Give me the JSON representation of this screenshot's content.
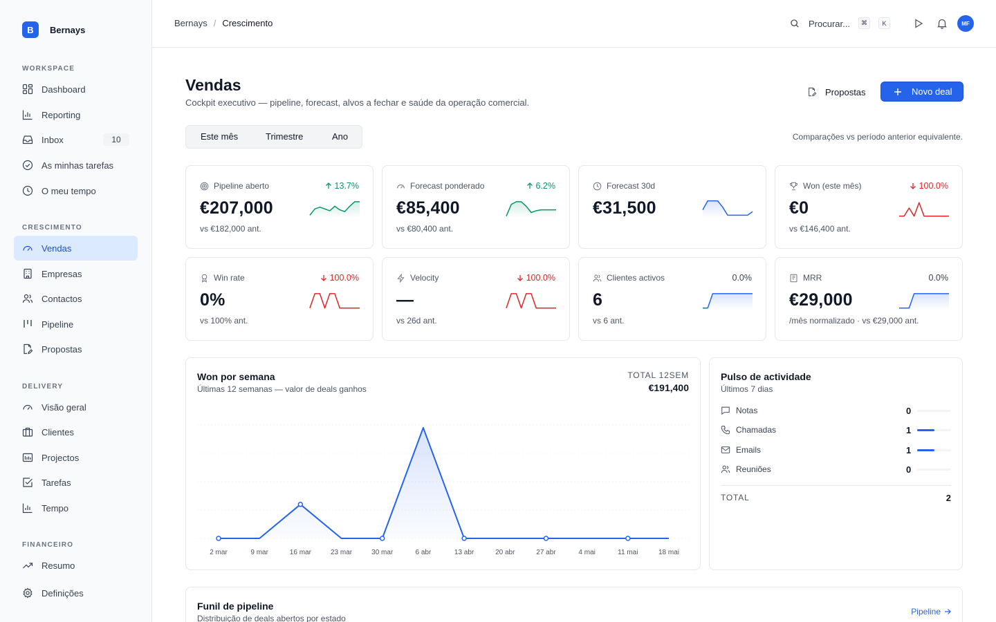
{
  "brand": {
    "initial": "B",
    "name": "Bernays"
  },
  "sidebar": {
    "sections": [
      {
        "label": "WORKSPACE"
      },
      {
        "label": "CRESCIMENTO"
      },
      {
        "label": "DELIVERY"
      },
      {
        "label": "FINANCEIRO"
      }
    ],
    "items": [
      {
        "label": "Dashboard",
        "icon": "dashboard-icon"
      },
      {
        "label": "Reporting",
        "icon": "bar-chart-icon"
      },
      {
        "label": "Inbox",
        "icon": "inbox-icon",
        "badge": "10"
      },
      {
        "label": "As minhas tarefas",
        "icon": "check-circle-icon"
      },
      {
        "label": "O meu tempo",
        "icon": "clock-icon"
      },
      {
        "label": "Vendas",
        "icon": "gauge-icon",
        "active": true
      },
      {
        "label": "Empresas",
        "icon": "building-icon"
      },
      {
        "label": "Contactos",
        "icon": "users-icon"
      },
      {
        "label": "Pipeline",
        "icon": "pipeline-icon"
      },
      {
        "label": "Propostas",
        "icon": "document-edit-icon"
      },
      {
        "label": "Visão geral",
        "icon": "gauge-icon"
      },
      {
        "label": "Clientes",
        "icon": "briefcase-icon"
      },
      {
        "label": "Projectos",
        "icon": "folder-icon"
      },
      {
        "label": "Tarefas",
        "icon": "checkbox-icon"
      },
      {
        "label": "Tempo",
        "icon": "bar-chart-icon"
      },
      {
        "label": "Resumo",
        "icon": "trend-icon"
      },
      {
        "label": "Definições",
        "icon": "gear-icon"
      }
    ]
  },
  "header": {
    "breadcrumb": [
      "Bernays",
      "Crescimento"
    ],
    "search_placeholder": "Procurar...",
    "shortcut_keys": [
      "⌘",
      "K"
    ],
    "avatar_initials": "MF"
  },
  "page": {
    "title": "Vendas",
    "subtitle": "Cockpit executivo — pipeline, forecast, alvos a fechar e saúde da operação comercial.",
    "secondary_button": "Propostas",
    "primary_button": "Novo deal",
    "periods": [
      "Este mês",
      "Trimestre",
      "Ano"
    ],
    "compare_note": "Comparações vs período anterior equivalente."
  },
  "colors": {
    "accent": "#2563eb",
    "up": "#059669",
    "down": "#dc2626"
  },
  "kpis": [
    {
      "label": "Pipeline aberto",
      "icon": "target-icon",
      "delta": "13.7%",
      "trend": "up",
      "value": "€207,000",
      "sub": "vs €182,000 ant.",
      "spark": [
        0.1,
        0.45,
        0.55,
        0.45,
        0.35,
        0.6,
        0.4,
        0.3,
        0.6,
        0.85,
        0.85
      ]
    },
    {
      "label": "Forecast ponderado",
      "icon": "gauge-icon",
      "delta": "6.2%",
      "trend": "up",
      "value": "€85,400",
      "sub": "vs €80,400 ant.",
      "spark": [
        0.05,
        0.7,
        0.85,
        0.85,
        0.6,
        0.25,
        0.35,
        0.4,
        0.4,
        0.4,
        0.4
      ]
    },
    {
      "label": "Forecast 30d",
      "icon": "clock-icon",
      "delta": "",
      "trend": "none",
      "value": "€31,500",
      "sub": "",
      "spark": [
        0.4,
        0.9,
        0.9,
        0.9,
        0.55,
        0.1,
        0.1,
        0.1,
        0.1,
        0.1,
        0.3
      ]
    },
    {
      "label": "Won (este mês)",
      "icon": "trophy-icon",
      "delta": "100.0%",
      "trend": "down",
      "value": "€0",
      "sub": "vs €146,400 ant.",
      "spark": [
        0.05,
        0.05,
        0.5,
        0.05,
        0.8,
        0.05,
        0.05,
        0.05,
        0.05,
        0.05,
        0.05
      ]
    },
    {
      "label": "Win rate",
      "icon": "medal-icon",
      "delta": "100.0%",
      "trend": "down",
      "value": "0%",
      "sub": "vs 100% ant.",
      "spark": [
        0.05,
        0.85,
        0.85,
        0.05,
        0.85,
        0.85,
        0.05,
        0.05,
        0.05,
        0.05,
        0.05
      ]
    },
    {
      "label": "Velocity",
      "icon": "lightning-icon",
      "delta": "100.0%",
      "trend": "down",
      "value": "—",
      "sub": "vs 26d ant.",
      "spark": [
        0.05,
        0.85,
        0.85,
        0.05,
        0.85,
        0.85,
        0.05,
        0.05,
        0.05,
        0.05,
        0.05
      ]
    },
    {
      "label": "Clientes activos",
      "icon": "users-icon",
      "delta": "0.0%",
      "trend": "flat",
      "value": "6",
      "sub": "vs 6 ant.",
      "spark": [
        0.05,
        0.05,
        0.85,
        0.85,
        0.85,
        0.85,
        0.85,
        0.85,
        0.85,
        0.85,
        0.85
      ]
    },
    {
      "label": "MRR",
      "icon": "receipt-icon",
      "delta": "0.0%",
      "trend": "flat",
      "value": "€29,000",
      "sub": "/mês normalizado · vs €29,000 ant.",
      "spark": [
        0.05,
        0.05,
        0.05,
        0.85,
        0.85,
        0.85,
        0.85,
        0.85,
        0.85,
        0.85,
        0.85
      ]
    }
  ],
  "won_chart": {
    "title": "Won por semana",
    "subtitle": "Últimas 12 semanas — valor de deals ganhos",
    "total_label": "TOTAL 12SEM",
    "total_value": "€191,400",
    "chart_data": {
      "type": "area",
      "x": [
        "2 mar",
        "9 mar",
        "16 mar",
        "23 mar",
        "30 mar",
        "6 abr",
        "13 abr",
        "20 abr",
        "27 abr",
        "4 mai",
        "11 mai",
        "18 mai"
      ],
      "values": [
        0,
        0,
        45000,
        0,
        0,
        146400,
        0,
        0,
        0,
        0,
        0,
        0
      ],
      "markers": [
        true,
        false,
        true,
        false,
        true,
        false,
        true,
        false,
        true,
        false,
        true,
        false
      ],
      "ylim": [
        0,
        150000
      ],
      "grid": true
    }
  },
  "pulse": {
    "title": "Pulso de actividade",
    "subtitle": "Últimos 7 dias",
    "rows": [
      {
        "label": "Notas",
        "icon": "chat-icon",
        "value": "0",
        "fraction": 0
      },
      {
        "label": "Chamadas",
        "icon": "phone-icon",
        "value": "1",
        "fraction": 0.5
      },
      {
        "label": "Emails",
        "icon": "mail-icon",
        "value": "1",
        "fraction": 0.5
      },
      {
        "label": "Reuniões",
        "icon": "users-icon",
        "value": "0",
        "fraction": 0
      }
    ],
    "total_label": "TOTAL",
    "total_value": "2"
  },
  "funnel": {
    "title": "Funil de pipeline",
    "subtitle": "Distribuição de deals abertos por estado",
    "link": "Pipeline"
  }
}
